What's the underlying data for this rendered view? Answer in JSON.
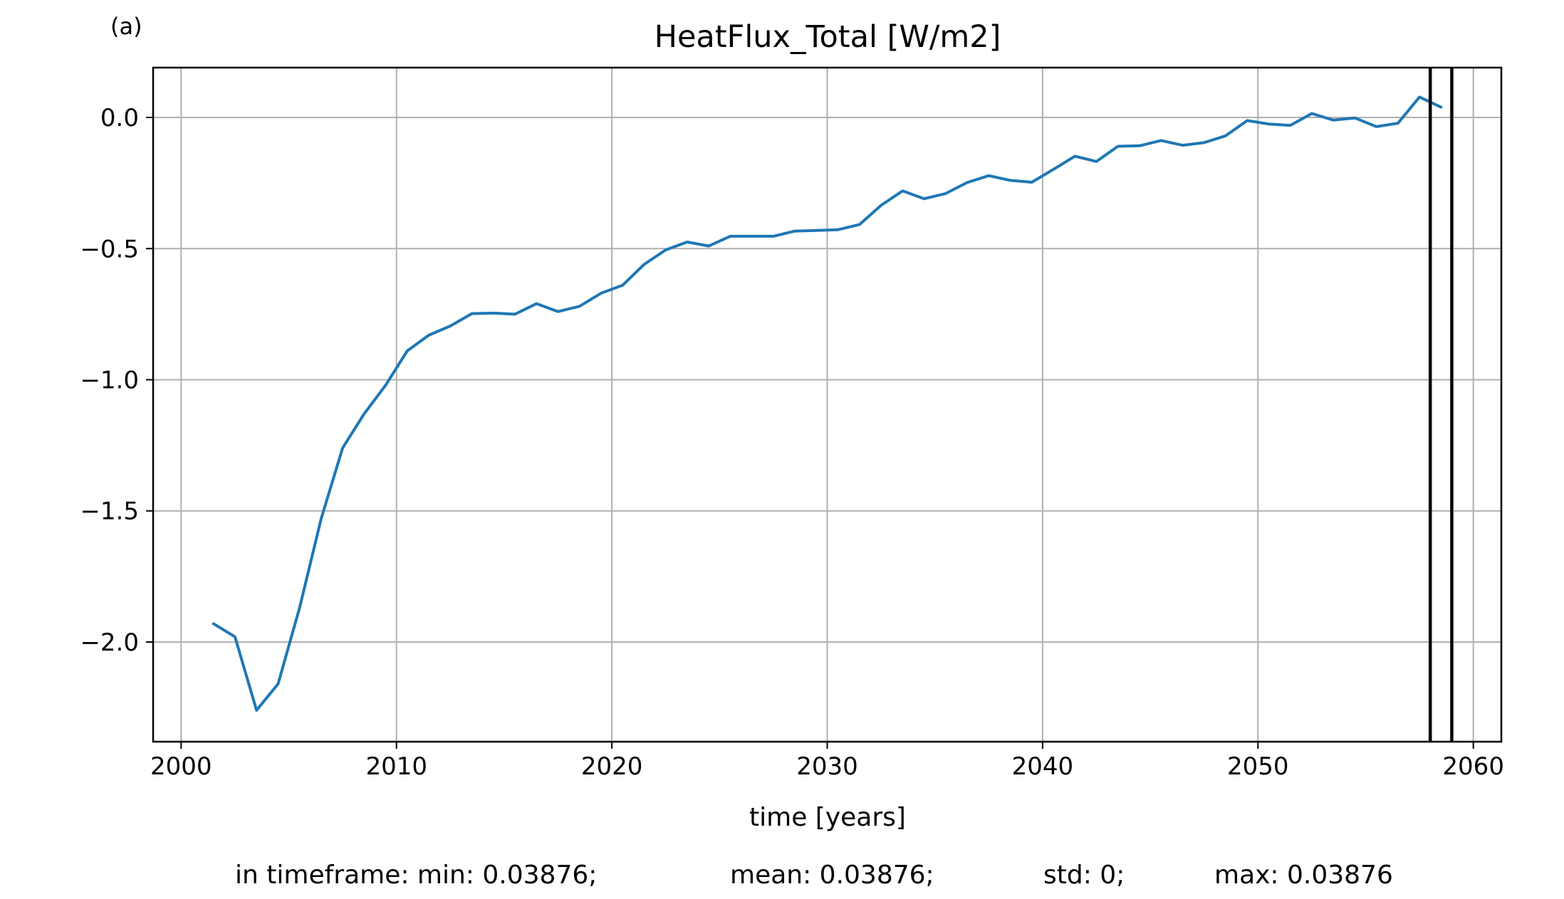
{
  "panel_label": "(a)",
  "stats": {
    "min": "in timeframe: min: 0.03876;",
    "mean": "mean: 0.03876;",
    "std": "std: 0;",
    "max": "max: 0.03876"
  },
  "chart_data": {
    "type": "line",
    "title": "HeatFlux_Total [W/m2]",
    "xlabel": "time [years]",
    "ylabel": "",
    "xlim": [
      1998.7,
      2061.3
    ],
    "ylim": [
      -2.38,
      0.19
    ],
    "grid": true,
    "xticks": [
      2000,
      2010,
      2020,
      2030,
      2040,
      2050,
      2060
    ],
    "xtick_labels": [
      "2000",
      "2010",
      "2020",
      "2030",
      "2040",
      "2050",
      "2060"
    ],
    "yticks": [
      0.0,
      -0.5,
      -1.0,
      -1.5,
      -2.0
    ],
    "ytick_labels": [
      "0.0",
      "−0.5",
      "−1.0",
      "−1.5",
      "−2.0"
    ],
    "vlines": [
      2058.0,
      2059.0
    ],
    "vline_color": "#000000",
    "series": [
      {
        "color": "#1f77b4",
        "x": [
          2001.5,
          2002.5,
          2003.5,
          2004.5,
          2005.5,
          2006.5,
          2007.5,
          2008.5,
          2009.5,
          2010.5,
          2011.5,
          2012.5,
          2013.5,
          2014.5,
          2015.5,
          2016.5,
          2017.5,
          2018.5,
          2019.5,
          2020.5,
          2021.5,
          2022.5,
          2023.5,
          2024.5,
          2025.5,
          2026.5,
          2027.5,
          2028.5,
          2029.5,
          2030.5,
          2031.5,
          2032.5,
          2033.5,
          2034.5,
          2035.5,
          2036.5,
          2037.5,
          2038.5,
          2039.5,
          2040.5,
          2041.5,
          2042.5,
          2043.5,
          2044.5,
          2045.5,
          2046.5,
          2047.5,
          2048.5,
          2049.5,
          2050.5,
          2051.5,
          2052.5,
          2053.5,
          2054.5,
          2055.5,
          2056.5,
          2057.5,
          2058.5
        ],
        "y": [
          -1.93,
          -1.98,
          -2.26,
          -2.16,
          -1.87,
          -1.53,
          -1.26,
          -1.13,
          -1.02,
          -0.89,
          -0.83,
          -0.795,
          -0.748,
          -0.746,
          -0.75,
          -0.71,
          -0.74,
          -0.72,
          -0.67,
          -0.64,
          -0.56,
          -0.505,
          -0.475,
          -0.49,
          -0.453,
          -0.453,
          -0.453,
          -0.433,
          -0.431,
          -0.428,
          -0.408,
          -0.335,
          -0.28,
          -0.31,
          -0.29,
          -0.248,
          -0.222,
          -0.24,
          -0.247,
          -0.198,
          -0.148,
          -0.168,
          -0.11,
          -0.108,
          -0.088,
          -0.106,
          -0.096,
          -0.07,
          -0.012,
          -0.025,
          -0.03,
          0.015,
          -0.01,
          -0.002,
          -0.035,
          -0.022,
          0.078,
          0.039
        ]
      }
    ]
  }
}
